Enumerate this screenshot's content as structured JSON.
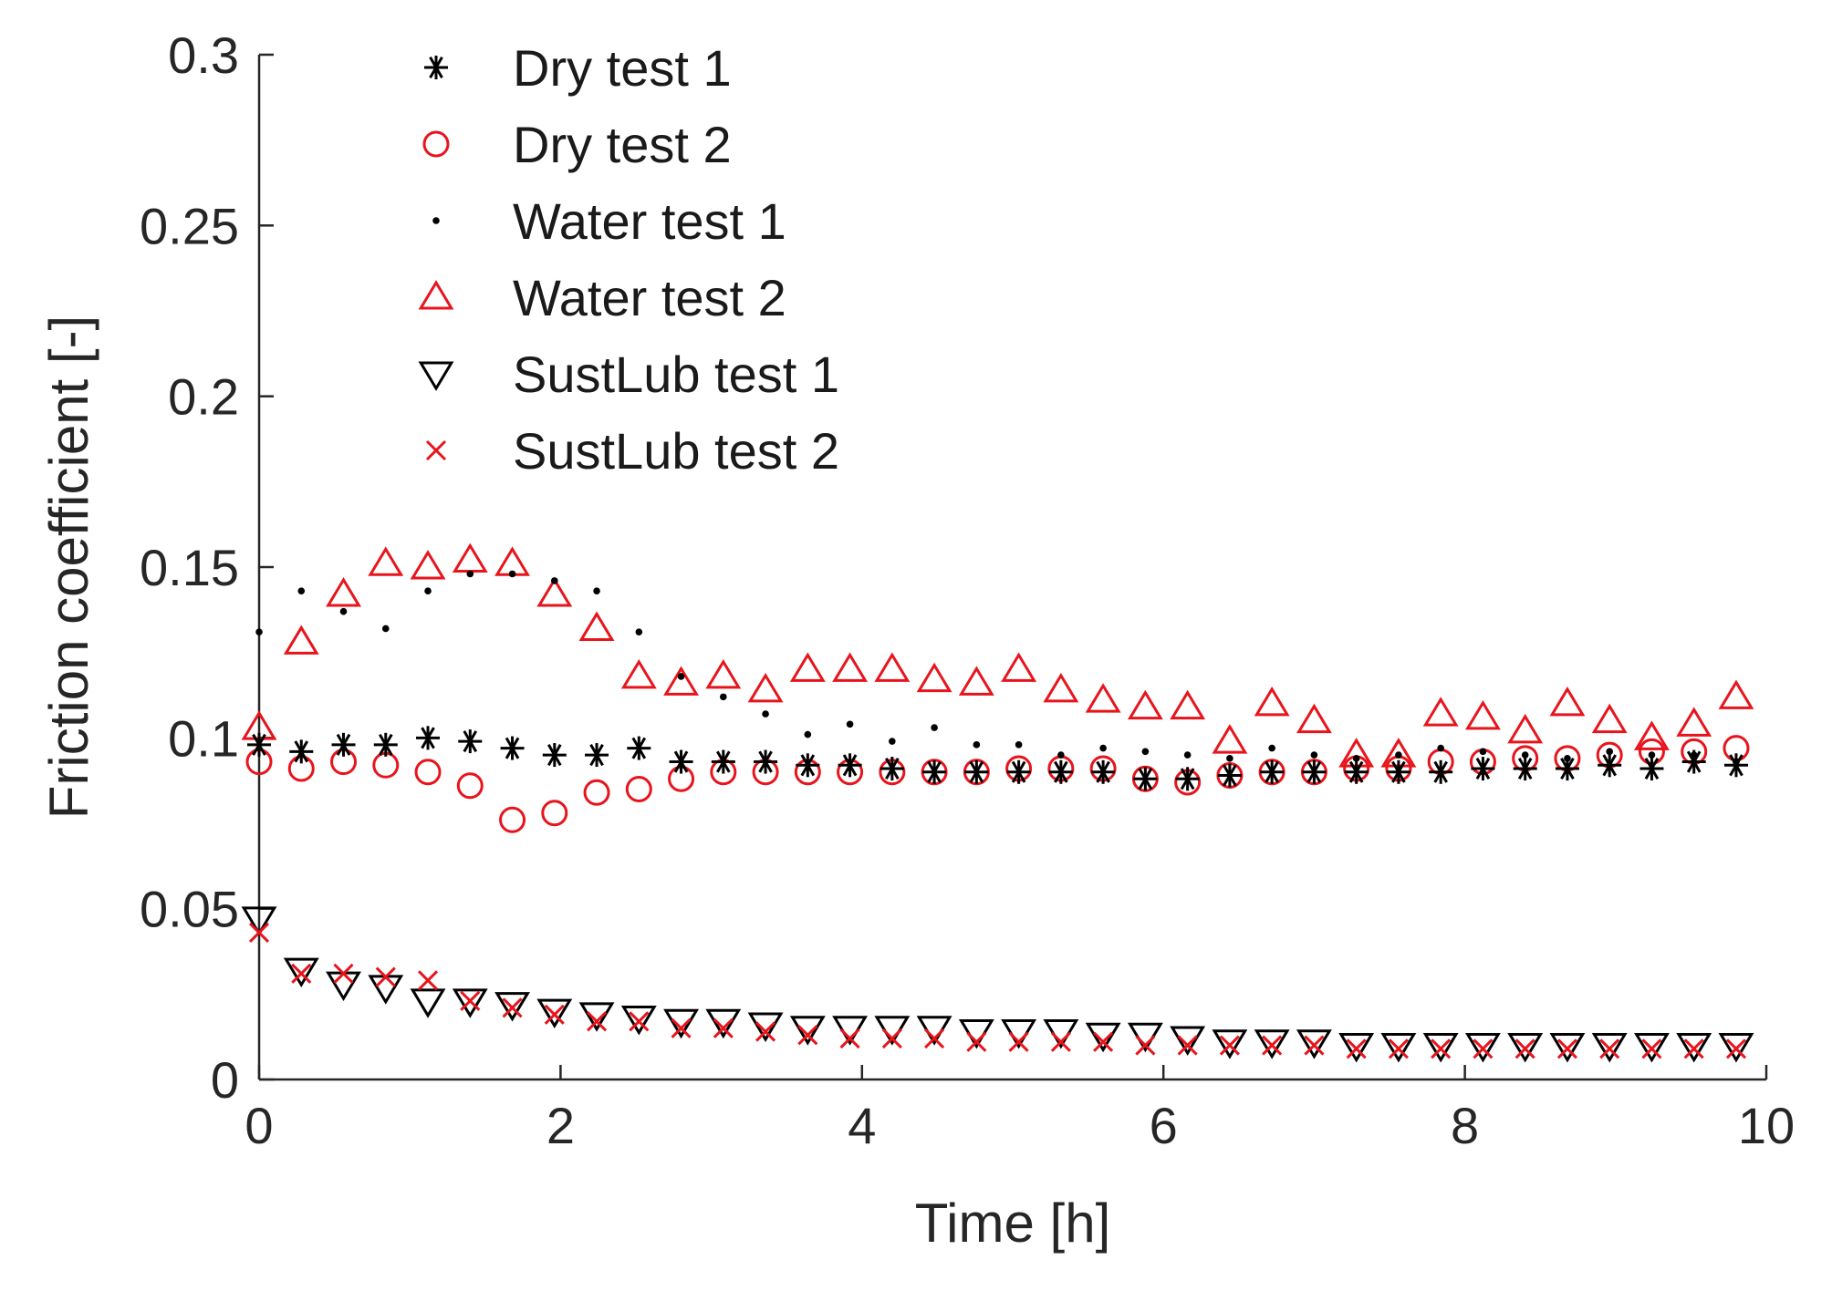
{
  "chart_data": {
    "type": "scatter",
    "title": "",
    "xlabel": "Time [h]",
    "ylabel": "Friction coefficient [-]",
    "xlim": [
      0,
      10
    ],
    "ylim": [
      0,
      0.3
    ],
    "xticks": [
      0,
      2,
      4,
      6,
      8,
      10
    ],
    "xtick_labels": [
      "0",
      "2",
      "4",
      "6",
      "8",
      "10"
    ],
    "yticks": [
      0,
      0.05,
      0.1,
      0.15,
      0.2,
      0.25,
      0.3
    ],
    "ytick_labels": [
      "0",
      "0.05",
      "0.1",
      "0.15",
      "0.2",
      "0.25",
      "0.3"
    ],
    "grid": false,
    "legend_position": "top-left",
    "x": [
      0,
      0.28,
      0.56,
      0.84,
      1.12,
      1.4,
      1.68,
      1.96,
      2.24,
      2.52,
      2.8,
      3.08,
      3.36,
      3.64,
      3.92,
      4.2,
      4.48,
      4.76,
      5.04,
      5.32,
      5.6,
      5.88,
      6.16,
      6.44,
      6.72,
      7.0,
      7.28,
      7.56,
      7.84,
      8.12,
      8.4,
      8.68,
      8.96,
      9.24,
      9.52,
      9.8
    ],
    "series": [
      {
        "name": "Dry test 1",
        "marker": "asterisk",
        "color": "#000000",
        "values": [
          0.098,
          0.096,
          0.098,
          0.098,
          0.1,
          0.099,
          0.097,
          0.095,
          0.095,
          0.097,
          0.093,
          0.093,
          0.093,
          0.092,
          0.092,
          0.091,
          0.09,
          0.09,
          0.09,
          0.09,
          0.09,
          0.088,
          0.088,
          0.089,
          0.09,
          0.09,
          0.09,
          0.09,
          0.09,
          0.091,
          0.091,
          0.091,
          0.092,
          0.091,
          0.093,
          0.092
        ]
      },
      {
        "name": "Dry test 2",
        "marker": "circle",
        "color": "#e8141c",
        "values": [
          0.093,
          0.091,
          0.093,
          0.092,
          0.09,
          0.086,
          0.076,
          0.078,
          0.084,
          0.085,
          0.088,
          0.09,
          0.09,
          0.09,
          0.09,
          0.09,
          0.09,
          0.09,
          0.091,
          0.091,
          0.091,
          0.088,
          0.087,
          0.089,
          0.09,
          0.09,
          0.091,
          0.091,
          0.093,
          0.093,
          0.094,
          0.094,
          0.095,
          0.096,
          0.096,
          0.097
        ]
      },
      {
        "name": "Water test 1",
        "marker": "dot",
        "color": "#000000",
        "values": [
          0.131,
          0.143,
          0.137,
          0.132,
          0.143,
          0.148,
          0.148,
          0.146,
          0.143,
          0.131,
          0.118,
          0.112,
          0.107,
          0.101,
          0.104,
          0.099,
          0.103,
          0.098,
          0.098,
          0.095,
          0.097,
          0.096,
          0.095,
          0.094,
          0.097,
          0.095,
          0.094,
          0.095,
          0.097,
          0.096,
          0.095,
          0.094,
          0.096,
          0.095,
          0.095,
          0.093
        ]
      },
      {
        "name": "Water test 2",
        "marker": "triangle-up",
        "color": "#e8141c",
        "values": [
          0.103,
          0.128,
          0.142,
          0.151,
          0.15,
          0.152,
          0.151,
          0.142,
          0.132,
          0.118,
          0.116,
          0.118,
          0.114,
          0.12,
          0.12,
          0.12,
          0.117,
          0.116,
          0.12,
          0.114,
          0.111,
          0.109,
          0.109,
          0.099,
          0.11,
          0.105,
          0.095,
          0.095,
          0.107,
          0.106,
          0.102,
          0.11,
          0.105,
          0.1,
          0.104,
          0.112
        ]
      },
      {
        "name": "SustLub test 1",
        "marker": "triangle-down",
        "color": "#000000",
        "values": [
          0.047,
          0.032,
          0.028,
          0.027,
          0.023,
          0.023,
          0.022,
          0.02,
          0.019,
          0.018,
          0.017,
          0.017,
          0.016,
          0.015,
          0.015,
          0.015,
          0.015,
          0.014,
          0.014,
          0.014,
          0.013,
          0.013,
          0.012,
          0.011,
          0.011,
          0.011,
          0.01,
          0.01,
          0.01,
          0.01,
          0.01,
          0.01,
          0.01,
          0.01,
          0.01,
          0.01
        ]
      },
      {
        "name": "SustLub test 2",
        "marker": "x",
        "color": "#e8141c",
        "values": [
          0.043,
          0.031,
          0.031,
          0.03,
          0.029,
          0.023,
          0.021,
          0.019,
          0.017,
          0.017,
          0.015,
          0.015,
          0.014,
          0.013,
          0.012,
          0.012,
          0.012,
          0.011,
          0.011,
          0.011,
          0.011,
          0.01,
          0.01,
          0.01,
          0.01,
          0.01,
          0.009,
          0.009,
          0.009,
          0.009,
          0.009,
          0.009,
          0.009,
          0.009,
          0.009,
          0.009
        ]
      }
    ]
  }
}
